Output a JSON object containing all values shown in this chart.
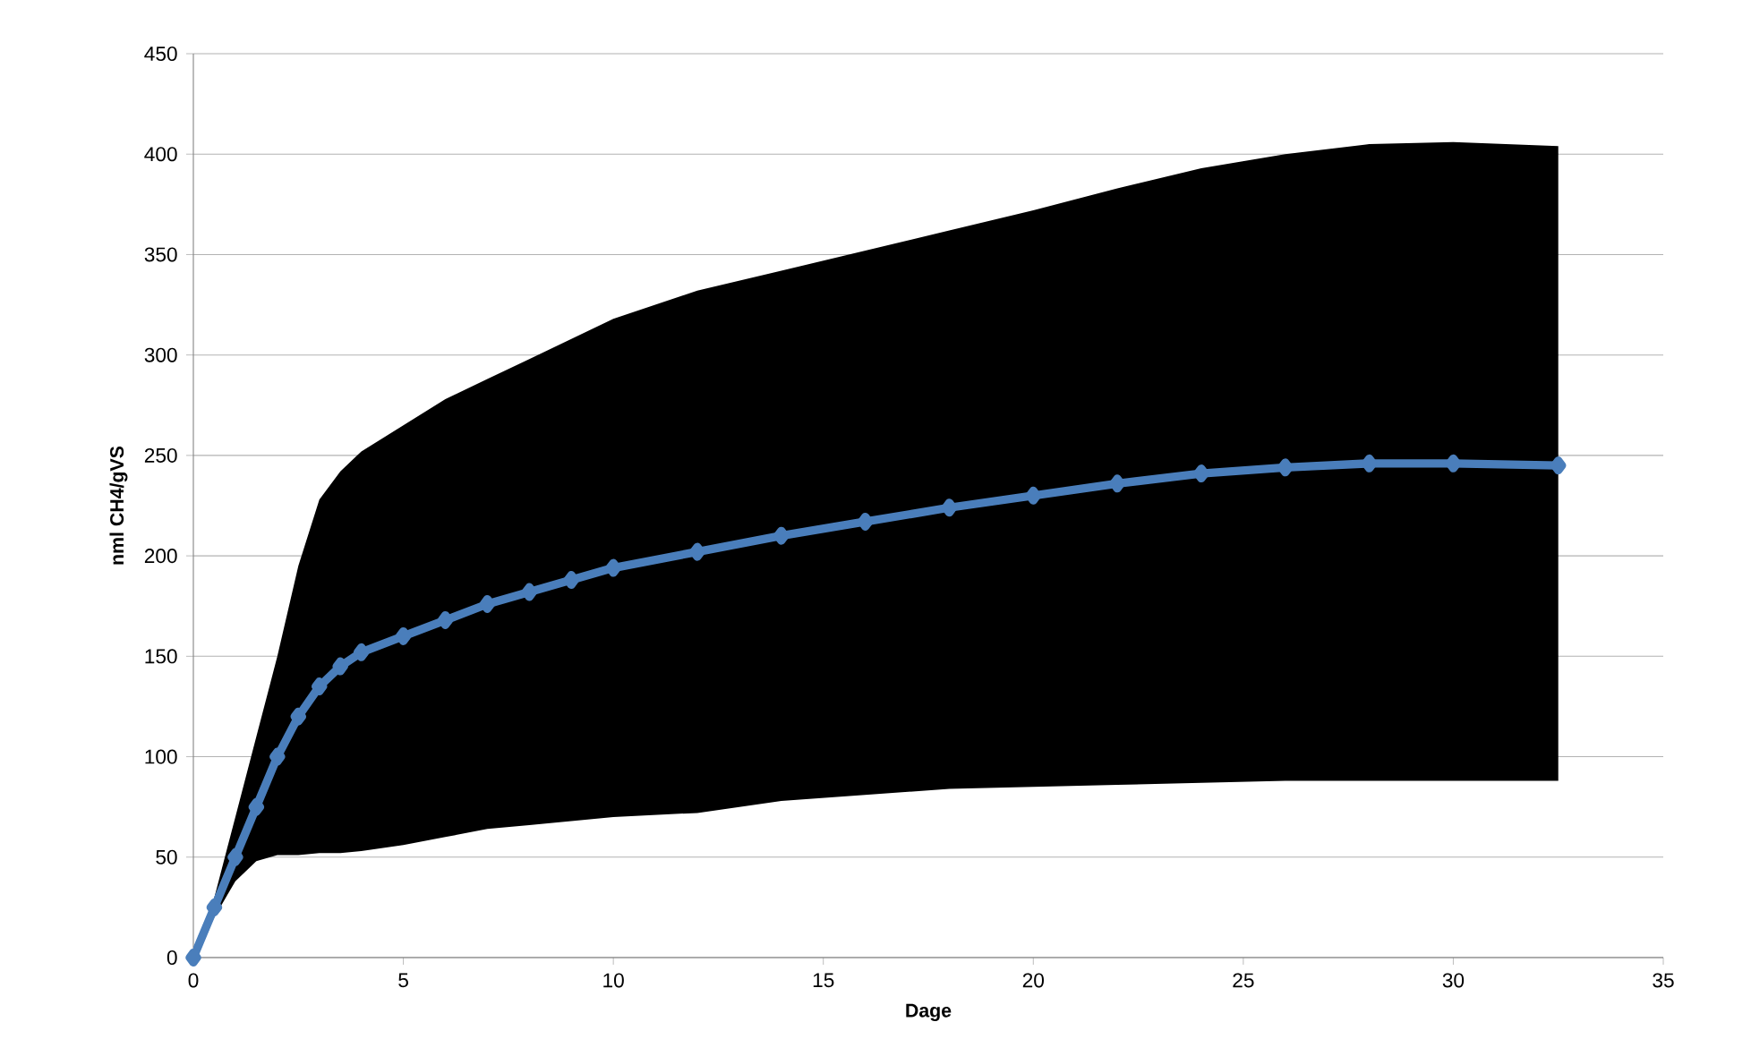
{
  "chart_data": {
    "type": "line",
    "xlabel": "Dage",
    "ylabel": "nml CH4/gVS",
    "xlim": [
      0,
      35
    ],
    "ylim": [
      0,
      450
    ],
    "xticks": [
      0,
      5,
      10,
      15,
      20,
      25,
      30,
      35
    ],
    "yticks": [
      0,
      50,
      100,
      150,
      200,
      250,
      300,
      350,
      400,
      450
    ],
    "grid": "y",
    "marker": "diamond",
    "line_style": "solid",
    "series": [
      {
        "color": "#4a7ebb",
        "x": [
          0,
          0.5,
          1,
          1.5,
          2,
          2.5,
          3,
          3.5,
          4,
          5,
          6,
          7,
          8,
          9,
          10,
          12,
          14,
          16,
          18,
          20,
          22,
          24,
          26,
          28,
          30,
          32.5
        ],
        "values": [
          0,
          25,
          50,
          75,
          100,
          120,
          135,
          145,
          152,
          160,
          168,
          176,
          182,
          188,
          194,
          202,
          210,
          217,
          224,
          230,
          236,
          241,
          244,
          246,
          246,
          245
        ],
        "upper": [
          0,
          30,
          70,
          110,
          150,
          195,
          228,
          242,
          252,
          265,
          278,
          288,
          298,
          308,
          318,
          332,
          342,
          352,
          362,
          372,
          383,
          393,
          400,
          405,
          406,
          404
        ],
        "lower": [
          0,
          20,
          38,
          48,
          51,
          51,
          52,
          52,
          53,
          56,
          60,
          64,
          66,
          68,
          70,
          72,
          78,
          81,
          84,
          85,
          86,
          87,
          88,
          88,
          88,
          88
        ]
      }
    ]
  }
}
